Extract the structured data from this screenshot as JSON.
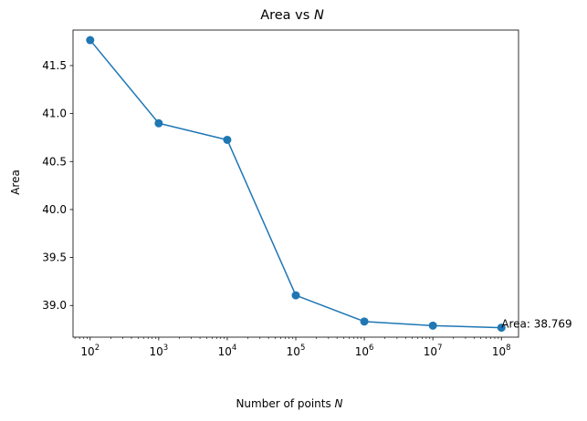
{
  "chart_data": {
    "type": "line",
    "title": "Area vs",
    "title_var": "N",
    "xlabel": "Number of points",
    "xlabel_var": "N",
    "ylabel": "Area",
    "xscale": "log",
    "x": [
      100,
      1000,
      10000,
      100000,
      1000000,
      10000000,
      100000000
    ],
    "series": [
      {
        "values": [
          41.765,
          40.899,
          40.726,
          39.106,
          38.833,
          38.79,
          38.769
        ],
        "color": "#1f77b4",
        "marker": "circle"
      }
    ],
    "xlim": [
      56.2,
      177800000
    ],
    "ylim": [
      38.67,
      41.87
    ],
    "x_ticks": [
      {
        "base": "10",
        "exp": "2",
        "value": 100
      },
      {
        "base": "10",
        "exp": "3",
        "value": 1000
      },
      {
        "base": "10",
        "exp": "4",
        "value": 10000
      },
      {
        "base": "10",
        "exp": "5",
        "value": 100000
      },
      {
        "base": "10",
        "exp": "6",
        "value": 1000000
      },
      {
        "base": "10",
        "exp": "7",
        "value": 10000000
      },
      {
        "base": "10",
        "exp": "8",
        "value": 100000000
      }
    ],
    "y_ticks": [
      {
        "label": "39.0",
        "value": 39.0
      },
      {
        "label": "39.5",
        "value": 39.5
      },
      {
        "label": "40.0",
        "value": 40.0
      },
      {
        "label": "40.5",
        "value": 40.5
      },
      {
        "label": "41.0",
        "value": 41.0
      },
      {
        "label": "41.5",
        "value": 41.5
      }
    ],
    "annotation": {
      "text": "Area: 38.769",
      "x": 100000000,
      "y": 38.769
    },
    "grid": false,
    "legend": "none"
  }
}
